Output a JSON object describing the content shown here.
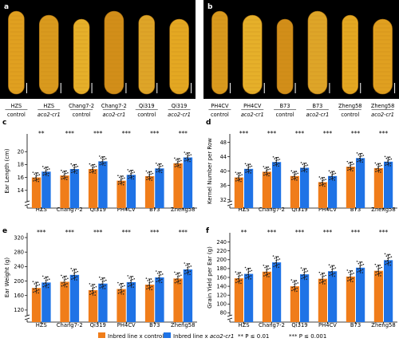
{
  "photo_panels": [
    {
      "label": "a",
      "ears": [
        {
          "line": "HZS",
          "treatment": "control"
        },
        {
          "line": "HZS",
          "treatment": "aco2-cr1"
        },
        {
          "line": "Chang7-2",
          "treatment": "control"
        },
        {
          "line": "Chang7-2",
          "treatment": "aco2-cr1"
        },
        {
          "line": "Qi319",
          "treatment": "control"
        },
        {
          "line": "Qi319",
          "treatment": "aco2-cr1"
        }
      ]
    },
    {
      "label": "b",
      "ears": [
        {
          "line": "PH4CV",
          "treatment": "control"
        },
        {
          "line": "PH4CV",
          "treatment": "aco2-cr1"
        },
        {
          "line": "B73",
          "treatment": "control"
        },
        {
          "line": "B73",
          "treatment": "aco2-cr1"
        },
        {
          "line": "Zheng58",
          "treatment": "control"
        },
        {
          "line": "Zheng58",
          "treatment": "aco2-cr1"
        }
      ]
    }
  ],
  "legend": {
    "control_label": "Inbred line x control",
    "mutant_label": "Inbred line x aco2-cr1",
    "note1": "** P ≤ 0.01",
    "note2": "*** P ≤ 0.001"
  },
  "colors": {
    "control": "#f07d1a",
    "mutant": "#1f73e6",
    "panel_bg": "#000000"
  },
  "chart_data": [
    {
      "label": "c",
      "type": "bar",
      "ylabel": "Ear Length (cm)",
      "ylim": [
        12,
        22
      ],
      "yticks": [
        14,
        16,
        18,
        20
      ],
      "axis_break": true,
      "categories": [
        "HZS",
        "Chang7-2",
        "Qi319",
        "PH4CV",
        "B73",
        "Zheng58"
      ],
      "series": [
        {
          "name": "Inbred line x control",
          "values": [
            16.0,
            16.3,
            17.3,
            15.5,
            16.2,
            18.2
          ]
        },
        {
          "name": "Inbred line x aco2-cr1",
          "values": [
            16.9,
            17.3,
            18.5,
            16.4,
            17.4,
            19.1
          ]
        }
      ],
      "significance": [
        "**",
        "***",
        "***",
        "***",
        "***",
        "***"
      ]
    },
    {
      "label": "d",
      "type": "bar",
      "ylabel": "Kernel Number per Row",
      "ylim": [
        31,
        49
      ],
      "yticks": [
        32,
        36,
        40,
        44,
        48
      ],
      "axis_break": true,
      "categories": [
        "HZS",
        "Chang7-2",
        "Qi319",
        "PH4CV",
        "B73",
        "Zheng58"
      ],
      "series": [
        {
          "name": "Inbred line x control",
          "values": [
            38.2,
            39.8,
            38.6,
            36.9,
            41.2,
            40.8
          ]
        },
        {
          "name": "Inbred line x aco2-cr1",
          "values": [
            40.6,
            42.5,
            40.9,
            38.6,
            43.6,
            42.6
          ]
        }
      ],
      "significance": [
        "***",
        "***",
        "***",
        "***",
        "***",
        "***"
      ]
    },
    {
      "label": "e",
      "type": "bar",
      "ylabel": "Ear Weight (g)",
      "ylim": [
        100,
        320
      ],
      "yticks": [
        120,
        160,
        200,
        240,
        280,
        320
      ],
      "axis_break": true,
      "categories": [
        "HZS",
        "Chang7-2",
        "Qi319",
        "PH4CV",
        "B73",
        "Zheng58"
      ],
      "series": [
        {
          "name": "Inbred line x control",
          "values": [
            181,
            198,
            175,
            178,
            190,
            207
          ]
        },
        {
          "name": "Inbred line x aco2-cr1",
          "values": [
            196,
            217,
            193,
            197,
            210,
            232
          ]
        }
      ],
      "significance": [
        "***",
        "***",
        "***",
        "***",
        "***",
        "***"
      ]
    },
    {
      "label": "f",
      "type": "bar",
      "ylabel": "Grain Yield per Ear (g)",
      "ylim": [
        70,
        250
      ],
      "yticks": [
        80,
        100,
        120,
        140,
        160,
        180,
        200,
        220,
        240
      ],
      "axis_break": true,
      "categories": [
        "HZS",
        "Chang7-2",
        "Qi319",
        "PH4CV",
        "B73",
        "Zheng58"
      ],
      "series": [
        {
          "name": "Inbred line x control",
          "values": [
            158,
            173,
            140,
            157,
            162,
            175
          ]
        },
        {
          "name": "Inbred line x aco2-cr1",
          "values": [
            168,
            194,
            167,
            174,
            182,
            199
          ]
        }
      ],
      "significance": [
        "**",
        "***",
        "***",
        "***",
        "***",
        "***"
      ]
    }
  ]
}
